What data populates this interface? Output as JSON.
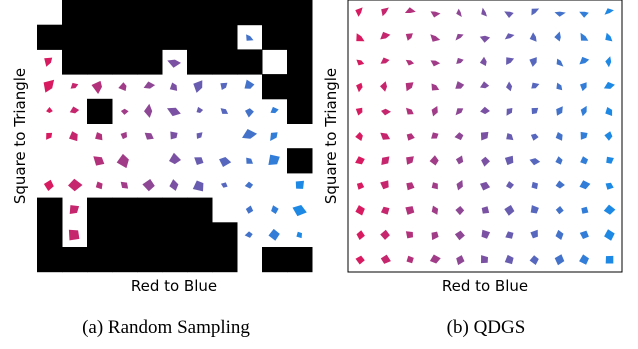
{
  "panels": [
    {
      "x_label": "Red to Blue",
      "y_label": "Square to Triangle",
      "caption": "(a) Random Sampling"
    },
    {
      "x_label": "Red to Blue",
      "y_label": "Square to Triangle",
      "caption": "(b) QDGS"
    }
  ]
}
